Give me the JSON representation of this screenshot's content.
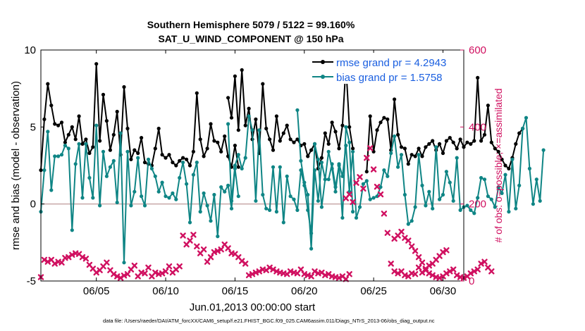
{
  "chart_data": {
    "type": "line",
    "title": "Southern Hemisphere 5079 / 5122 = 99.160%",
    "subtitle": "SAT_U_WIND_COMPONENT @ 150 hPa",
    "xlabel": "Jun.01,2013 00:00:00 start",
    "ylabel": "rmse and bias (model - observation)",
    "ylabel_right": "# of obs: o=possible; ×=assimilated",
    "xlim": [
      1,
      31.5
    ],
    "ylim": [
      -5,
      10
    ],
    "ylim_right": [
      0,
      600
    ],
    "x_ticks": [
      5,
      10,
      15,
      20,
      25,
      30
    ],
    "x_tick_labels": [
      "06/05",
      "06/10",
      "06/15",
      "06/20",
      "06/25",
      "06/30"
    ],
    "y_ticks": [
      -5,
      0,
      5,
      10
    ],
    "y_tick_labels": [
      "-5",
      "0",
      "5",
      "10"
    ],
    "y_right_ticks": [
      0,
      200,
      400,
      600
    ],
    "y_right_tick_labels": [
      "0",
      "200",
      "400",
      "600"
    ],
    "reference_line_y": 0,
    "footnote": "data file: /Users/raeder/DAI/ATM_forcXX/CAM6_setup/f.e21.FHIST_BGC.f09_025.CAM6assim.011/Diags_NTrS_2013-06/obs_diag_output.nc",
    "colors": {
      "rmse": "#000000",
      "bias": "#0f8585",
      "obs": "#d01060",
      "legend_text": "#1a5fe0",
      "zero_line": "#c8a8a8"
    },
    "series": [
      {
        "name": "rmse grand pr = 4.2943",
        "color": "#000000",
        "segments": [
          {
            "x0": 1.0,
            "y": [
              2.2,
              5.5,
              7.8,
              6.4,
              5.2,
              5.1,
              5.3,
              4.0,
              4.5,
              5.0,
              4.2,
              5.7,
              3.9,
              4.2,
              3.3,
              3.7,
              9.1,
              4.1,
              7.1,
              5.4,
              3.5,
              4.5,
              6.0,
              3.2,
              7.6,
              4.9,
              2.9,
              3.5,
              3.3,
              4.3,
              2.7,
              2.6,
              2.5,
              3.6,
              4.9,
              3.2,
              3.0,
              3.2,
              2.7,
              2.5,
              2.8,
              3.0,
              2.9,
              2.5,
              3.4,
              7.2,
              4.2,
              3.1,
              3.6,
              5.2,
              4.1,
              4.0,
              3.4,
              4.4,
              3.1,
              2.4,
              3.8,
              2.4
            ]
          },
          {
            "x0": 14.5,
            "y": [
              6.9,
              5.6,
              8.3,
              4.8,
              8.7,
              5.1,
              6.2,
              4.2,
              5.5,
              3.3,
              7.8,
              4.9,
              4.2,
              3.5,
              5.7,
              4.1,
              4.6,
              5.1,
              4.2,
              4.0,
              4.2,
              3.8,
              3.9,
              3.1,
              3.5,
              3.9,
              2.3,
              3.0,
              4.6,
              3.9,
              5.3,
              4.7,
              3.6,
              5.1,
              9.0,
              5.0,
              3.6
            ]
          },
          {
            "x0": 24.5,
            "y": [
              2.1,
              5.7,
              3.4,
              4.8,
              5.3,
              5.6,
              5.5,
              3.5,
              6.8,
              4.5,
              3.7,
              3.6,
              2.6,
              3.2,
              3.1,
              3.6,
              3.1,
              3.7,
              3.9,
              4.1,
              3.5,
              3.9,
              3.3,
              4.1,
              4.3,
              4.0,
              3.6,
              4.2,
              3.7,
              4.0,
              3.9,
              4.1,
              8.2,
              4.1,
              4.5,
              6.4,
              4.0,
              3.6,
              3.4,
              2.9,
              2.5,
              2.3,
              3.0,
              3.9,
              4.6,
              4.9
            ]
          }
        ]
      },
      {
        "name": "bias grand pr = 1.5758",
        "color": "#0f8585",
        "segments": [
          {
            "x0": 1.0,
            "y": [
              -0.5,
              2.2,
              4.7,
              0.9,
              3.1,
              3.1,
              3.2,
              3.8,
              3.6,
              -1.7,
              2.6,
              3.9,
              0.4,
              3.9,
              1.7,
              0.4,
              5.1,
              -0.1,
              3.4,
              1.8,
              2.4,
              2.8,
              0.1,
              4.6,
              -3.8,
              3.4,
              -0.1,
              0.8,
              3.0,
              0.5,
              -0.1,
              2.9,
              2.3,
              1.8,
              0.8,
              1.4,
              0.5,
              0.4,
              0.7,
              0.3,
              1.7,
              2.7,
              1.3,
              -1.2,
              1.9,
              2.7,
              -0.5,
              0.7,
              -0.1,
              -1.1,
              0.6,
              -2.1,
              1.1,
              0.8,
              1.2,
              -0.3,
              2.3,
              0.5
            ]
          },
          {
            "x0": 14.5,
            "y": [
              5.2,
              0.2,
              2.5,
              3.2,
              2.3,
              3.0,
              5.7,
              4.8,
              0.2,
              4.8,
              0.6,
              -0.3,
              -0.4,
              2.4,
              -0.5,
              2.4,
              -1.2,
              1.8,
              0.5,
              0.3,
              -0.4,
              2.2,
              1.2,
              -0.4,
              -1.9,
              3.9,
              2.9,
              -0.2,
              1.6,
              1.6,
              2.6,
              1.1,
              2.5,
              -0.9,
              5.0,
              4.0,
              -0.5
            ]
          },
          {
            "x0": 19.5,
            "y": [
              6.1,
              2.8,
              1.4,
              0.6,
              -2.9,
              2.2,
              0.2,
              2.7,
              1.6,
              3.4,
              2.3,
              0.8,
              2.6,
              1.8,
              3.8,
              0.8,
              3.4,
              -0.9,
              -0.2,
              1.3,
              1.5,
              0.3,
              0.4,
              0.5,
              1.1,
              2.2,
              1.8,
              3.3,
              4.4,
              2.4,
              3.2,
              0.6,
              -1.3,
              -1.1,
              -0.2,
              3.2,
              1.2,
              -0.1,
              0.8,
              -0.3,
              3.7,
              0.3,
              0.6,
              2.1,
              1.4,
              0.2,
              3.0,
              -0.4,
              -0.2,
              -0.1,
              -0.4,
              -0.6,
              0.4,
              1.7,
              1.6,
              0.5,
              0.3,
              -0.2,
              1.1,
              0.7,
              1.9,
              -0.5,
              2.9,
              -0.3,
              1.2,
              4.9,
              5.6,
              2.3,
              0.0,
              1.6,
              0.2,
              3.5
            ]
          }
        ]
      },
      {
        "name": "# of obs assimilated",
        "color": "#d01060",
        "axis": "right",
        "marker": "x",
        "segments": [
          {
            "x0": 1.0,
            "y": [
              10,
              55,
              50,
              55,
              45,
              50,
              48,
              60,
              62,
              68,
              72,
              70,
              62,
              58,
              42,
              32,
              22,
              28,
              38,
              48,
              28,
              18,
              12,
              8,
              14,
              18,
              30,
              40,
              12,
              22,
              20,
              35,
              12,
              22,
              18,
              20,
              25,
              38,
              22,
              30,
              38,
              118,
              95,
              105,
              120,
              90,
              72,
              82,
              50,
              62,
              75,
              78,
              82,
              95,
              85,
              72,
              70,
              62,
              52,
              45
            ]
          },
          {
            "x0": 16.0,
            "y": [
              15,
              18,
              22,
              25,
              30,
              28,
              35,
              30,
              25,
              22,
              20,
              18,
              25,
              22,
              20,
              30,
              18,
              15,
              12,
              25,
              20,
              22,
              15,
              18,
              12,
              10,
              8,
              12,
              5,
              18
            ]
          },
          {
            "x0": 23.0,
            "y": [
              215,
              225,
              205,
              255,
              270,
              240,
              320,
              345,
              290,
              245,
              225,
              175,
              125,
              45,
              25,
              20,
              25,
              15,
              12,
              20,
              18,
              35,
              22,
              28,
              40,
              45,
              55,
              65,
              75,
              80
            ]
          },
          {
            "x0": 26.5,
            "y": [
              110,
              118,
              128,
              112,
              105,
              90,
              78,
              62,
              48,
              32,
              20,
              15,
              10,
              8,
              12,
              20,
              25,
              30,
              15,
              10,
              8,
              12,
              20,
              25,
              30,
              45,
              50,
              35,
              25
            ]
          }
        ]
      }
    ]
  }
}
